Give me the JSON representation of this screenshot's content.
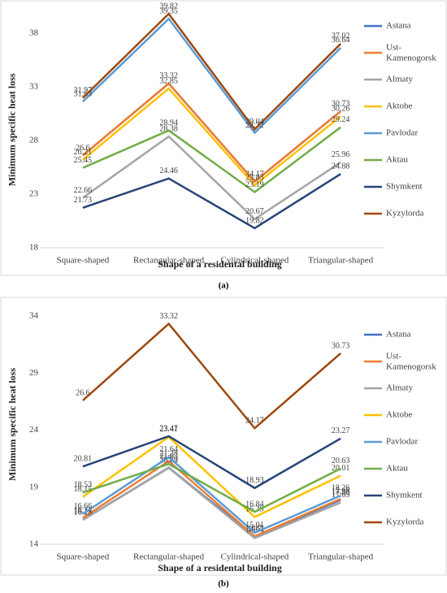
{
  "chart_data": [
    {
      "type": "line",
      "caption": "(a)",
      "x_label": "Shape of a residental building",
      "y_label": "Minimum specific heat loss",
      "categories": [
        "Square-shaped",
        "Rectangular-shaped",
        "Cylindrical-shaped",
        "Triangular-shaped"
      ],
      "ylim": [
        18,
        40
      ],
      "yticks": [
        18,
        23,
        28,
        33,
        38
      ],
      "legend": "right",
      "series": [
        {
          "name": "Astana",
          "color": "#4472c4",
          "values": [
            26.6,
            33.32,
            24.17,
            30.73
          ]
        },
        {
          "name": "Ust-Kamenogorsk",
          "color": "#ed7d31",
          "values": [
            26.6,
            33.32,
            24.17,
            30.73
          ],
          "show_labels": false
        },
        {
          "name": "Almaty",
          "color": "#a5a5a5",
          "values": [
            22.66,
            28.38,
            20.67,
            25.96
          ]
        },
        {
          "name": "Aktobe",
          "color": "#ffc000",
          "values": [
            26.21,
            32.85,
            23.83,
            30.26
          ]
        },
        {
          "name": "Pavlodar",
          "color": "#5b9bd5",
          "values": [
            31.63,
            39.35,
            28.72,
            36.64
          ]
        },
        {
          "name": "Aktau",
          "color": "#70ad47",
          "values": [
            25.45,
            28.94,
            23.19,
            29.24
          ]
        },
        {
          "name": "Shymkent",
          "color": "#264478",
          "values": [
            21.73,
            24.46,
            19.82,
            24.88
          ]
        },
        {
          "name": "Kyzylorda",
          "color": "#9e480e",
          "values": [
            31.97,
            39.82,
            29.04,
            37.02
          ]
        }
      ]
    },
    {
      "type": "line",
      "caption": "(b)",
      "x_label": "Shape of a residental building",
      "y_label": "Minimum specific heat loss",
      "categories": [
        "Square-shaped",
        "Rectangular-shaped",
        "Cylindrical-shaped",
        "Triangular-shaped"
      ],
      "ylim": [
        14,
        35
      ],
      "yticks": [
        14,
        19,
        24,
        29,
        34
      ],
      "legend": "right",
      "series": [
        {
          "name": "Astana",
          "color": "#4472c4",
          "values": [
            16.14,
            20.72,
            14.67,
            17.88
          ]
        },
        {
          "name": "Ust-Kamenogorsk",
          "color": "#ed7d31",
          "values": [
            16.31,
            21.28,
            14.7,
            17.98
          ]
        },
        {
          "name": "Almaty",
          "color": "#a5a5a5",
          "values": [
            16.13,
            20.69,
            14.54,
            17.65
          ]
        },
        {
          "name": "Aktobe",
          "color": "#ffc000",
          "values": [
            18.15,
            23.41,
            16.39,
            20.01
          ]
        },
        {
          "name": "Pavlodar",
          "color": "#5b9bd5",
          "values": [
            16.66,
            21.64,
            15.01,
            18.26
          ]
        },
        {
          "name": "Aktau",
          "color": "#70ad47",
          "values": [
            18.53,
            21.03,
            16.84,
            20.63
          ]
        },
        {
          "name": "Shymkent",
          "color": "#264478",
          "values": [
            20.81,
            23.47,
            18.93,
            23.27
          ]
        },
        {
          "name": "Kyzylorda",
          "color": "#9e480e",
          "values": [
            26.6,
            33.32,
            24.17,
            30.73
          ]
        }
      ]
    }
  ]
}
